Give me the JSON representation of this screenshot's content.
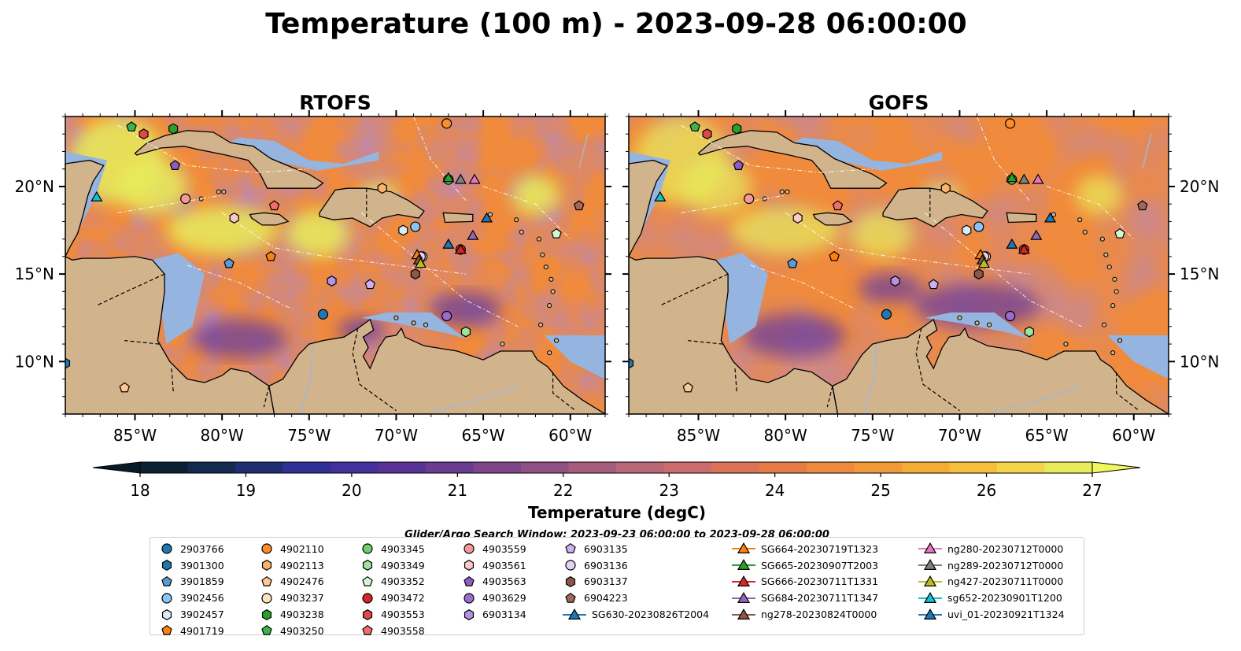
{
  "title": "Temperature (100 m) - 2023-09-28 06:00:00",
  "panels": [
    {
      "title": "RTOFS"
    },
    {
      "title": "GOFS"
    }
  ],
  "axes": {
    "lon_ticks": [
      "85°W",
      "80°W",
      "75°W",
      "70°W",
      "65°W",
      "60°W"
    ],
    "lon_values": [
      -85,
      -80,
      -75,
      -70,
      -65,
      -60
    ],
    "lat_ticks": [
      "10°N",
      "15°N",
      "20°N"
    ],
    "lat_values": [
      10,
      15,
      20
    ],
    "lon_range": [
      -89,
      -58
    ],
    "lat_range": [
      7,
      24
    ]
  },
  "colorbar": {
    "label": "Temperature (degC)",
    "ticks": [
      "18",
      "19",
      "20",
      "21",
      "22",
      "23",
      "24",
      "25",
      "26",
      "27"
    ],
    "range": [
      18,
      27
    ],
    "extend": "both",
    "colors": [
      "#0d1f33",
      "#132a4e",
      "#1f2d73",
      "#302f93",
      "#44309c",
      "#583297",
      "#6b3b8f",
      "#7e4589",
      "#925183",
      "#a65c7c",
      "#b96677",
      "#cd6c6c",
      "#db7356",
      "#e67b48",
      "#ee8a3d",
      "#f29a38",
      "#f5ac37",
      "#f7be3c",
      "#f3d44a",
      "#e8ec5a"
    ]
  },
  "map_colors": {
    "land": "#d2b48c",
    "shelf": "#95b5e0",
    "cool": "#6a3ea0",
    "warm": "#f08a3c",
    "hot": "#e8ec5a"
  },
  "search_window": "Glider/Argo Search Window: 2023-09-23 06:00:00 to 2023-09-28 06:00:00",
  "legend_columns": [
    [
      {
        "label": "2903766",
        "marker": "circle",
        "color": "#1f77b4"
      },
      {
        "label": "3901300",
        "marker": "hexagon",
        "color": "#1f77b4"
      },
      {
        "label": "3901859",
        "marker": "pentagon",
        "color": "#5b9bd5"
      },
      {
        "label": "3902456",
        "marker": "circle",
        "color": "#89c4f4"
      },
      {
        "label": "3902457",
        "marker": "hexagon",
        "color": "#d6ecfb"
      },
      {
        "label": "4901719",
        "marker": "pentagon",
        "color": "#ff7f0e"
      }
    ],
    [
      {
        "label": "4902110",
        "marker": "circle",
        "color": "#ff8c2b"
      },
      {
        "label": "4902113",
        "marker": "hexagon",
        "color": "#ffb26b"
      },
      {
        "label": "4902476",
        "marker": "pentagon",
        "color": "#ffc891"
      },
      {
        "label": "4903237",
        "marker": "circle",
        "color": "#ffe2c2"
      },
      {
        "label": "4903238",
        "marker": "hexagon",
        "color": "#2ca02c"
      },
      {
        "label": "4903250",
        "marker": "pentagon",
        "color": "#3cb44b"
      }
    ],
    [
      {
        "label": "4903345",
        "marker": "circle",
        "color": "#6fcf6f"
      },
      {
        "label": "4903349",
        "marker": "hexagon",
        "color": "#9de29d"
      },
      {
        "label": "4903352",
        "marker": "pentagon",
        "color": "#d4f7d4"
      },
      {
        "label": "4903472",
        "marker": "circle",
        "color": "#d62728"
      },
      {
        "label": "4903553",
        "marker": "hexagon",
        "color": "#e04848"
      },
      {
        "label": "4903558",
        "marker": "pentagon",
        "color": "#f06e6e"
      }
    ],
    [
      {
        "label": "4903559",
        "marker": "circle",
        "color": "#f59898"
      },
      {
        "label": "4903561",
        "marker": "hexagon",
        "color": "#fcc8c8"
      },
      {
        "label": "4903563",
        "marker": "pentagon",
        "color": "#8e5cc4"
      },
      {
        "label": "4903629",
        "marker": "circle",
        "color": "#9a6ccf"
      },
      {
        "label": "6903134",
        "marker": "hexagon",
        "color": "#b493e0"
      }
    ],
    [
      {
        "label": "6903135",
        "marker": "pentagon",
        "color": "#cbb2ec"
      },
      {
        "label": "6903136",
        "marker": "circle",
        "color": "#e6d4f7"
      },
      {
        "label": "6903137",
        "marker": "hexagon",
        "color": "#8c564b"
      },
      {
        "label": "6904223",
        "marker": "pentagon",
        "color": "#a0685c"
      },
      {
        "label": "SG630-20230826T2004",
        "marker": "triangle-line",
        "color": "#1f77b4"
      }
    ],
    [
      {
        "label": "SG664-20230719T1323",
        "marker": "triangle-line",
        "color": "#ff7f0e"
      },
      {
        "label": "SG665-20230907T2003",
        "marker": "triangle-line",
        "color": "#2ca02c"
      },
      {
        "label": "SG666-20230711T1331",
        "marker": "triangle-line",
        "color": "#d62728"
      },
      {
        "label": "SG684-20230711T1347",
        "marker": "triangle-line",
        "color": "#9467bd"
      },
      {
        "label": "ng278-20230824T0000",
        "marker": "triangle-line",
        "color": "#8c564b"
      }
    ],
    [
      {
        "label": "ng280-20230712T0000",
        "marker": "triangle-line",
        "color": "#e377c2"
      },
      {
        "label": "ng289-20230712T0000",
        "marker": "triangle-line",
        "color": "#7f7f7f"
      },
      {
        "label": "ng427-20230711T0000",
        "marker": "triangle-line",
        "color": "#bcbd22"
      },
      {
        "label": "sg652-20230901T1200",
        "marker": "triangle-line",
        "color": "#17becf"
      },
      {
        "label": "uvi_01-20230921T1324",
        "marker": "triangle-line",
        "color": "#1f77b4"
      }
    ]
  ],
  "chart_data": {
    "type": "heatmap",
    "variable": "Temperature",
    "units": "degC",
    "depth": "100 m",
    "time": "2023-09-28 06:00:00",
    "panels": [
      "RTOFS",
      "GOFS"
    ],
    "xlim": [
      -89,
      -58
    ],
    "ylim": [
      7,
      24
    ],
    "color_range": [
      18,
      27
    ],
    "observations": [
      {
        "id": "2903766",
        "lon": -74.2,
        "lat": 12.7,
        "marker": "circle",
        "color": "#1f77b4"
      },
      {
        "id": "3901300",
        "lon": -89.0,
        "lat": 9.9,
        "marker": "hexagon",
        "color": "#1f77b4"
      },
      {
        "id": "3901859",
        "lon": -79.6,
        "lat": 15.6,
        "marker": "pentagon",
        "color": "#5b9bd5"
      },
      {
        "id": "3902456",
        "lon": -68.9,
        "lat": 17.7,
        "marker": "circle",
        "color": "#89c4f4"
      },
      {
        "id": "3902457",
        "lon": -69.6,
        "lat": 17.5,
        "marker": "hexagon",
        "color": "#d6ecfb"
      },
      {
        "id": "4901719",
        "lon": -77.2,
        "lat": 16.0,
        "marker": "pentagon",
        "color": "#ff7f0e"
      },
      {
        "id": "4902110",
        "lon": -67.1,
        "lat": 23.6,
        "marker": "circle",
        "color": "#ff8c2b"
      },
      {
        "id": "4902113",
        "lon": -70.8,
        "lat": 19.9,
        "marker": "hexagon",
        "color": "#ffb26b"
      },
      {
        "id": "4902476",
        "lon": -85.6,
        "lat": 8.5,
        "marker": "pentagon",
        "color": "#ffc891"
      },
      {
        "id": "4903237",
        "lon": -68.5,
        "lat": 16.0,
        "marker": "circle",
        "color": "#ffe2c2"
      },
      {
        "id": "4903238",
        "lon": -82.8,
        "lat": 23.3,
        "marker": "hexagon",
        "color": "#2ca02c"
      },
      {
        "id": "4903250",
        "lon": -85.2,
        "lat": 23.4,
        "marker": "pentagon",
        "color": "#3cb44b"
      },
      {
        "id": "4903345",
        "lon": -67.0,
        "lat": 20.4,
        "marker": "circle",
        "color": "#6fcf6f"
      },
      {
        "id": "4903349",
        "lon": -66.0,
        "lat": 11.7,
        "marker": "hexagon",
        "color": "#9de29d"
      },
      {
        "id": "4903352",
        "lon": -60.8,
        "lat": 17.3,
        "marker": "pentagon",
        "color": "#d4f7d4"
      },
      {
        "id": "4903472",
        "lon": -66.3,
        "lat": 16.4,
        "marker": "circle",
        "color": "#d62728"
      },
      {
        "id": "4903553",
        "lon": -84.5,
        "lat": 23.0,
        "marker": "hexagon",
        "color": "#e04848"
      },
      {
        "id": "4903558",
        "lon": -77.0,
        "lat": 18.9,
        "marker": "pentagon",
        "color": "#f06e6e"
      },
      {
        "id": "4903559",
        "lon": -82.1,
        "lat": 19.3,
        "marker": "circle",
        "color": "#f59898"
      },
      {
        "id": "4903561",
        "lon": -79.3,
        "lat": 18.2,
        "marker": "hexagon",
        "color": "#fcc8c8"
      },
      {
        "id": "4903563",
        "lon": -82.7,
        "lat": 21.2,
        "marker": "pentagon",
        "color": "#8e5cc4"
      },
      {
        "id": "4903629",
        "lon": -67.1,
        "lat": 12.6,
        "marker": "circle",
        "color": "#9a6ccf"
      },
      {
        "id": "6903134",
        "lon": -73.7,
        "lat": 14.6,
        "marker": "hexagon",
        "color": "#b493e0"
      },
      {
        "id": "6903135",
        "lon": -71.5,
        "lat": 14.4,
        "marker": "pentagon",
        "color": "#cbb2ec"
      },
      {
        "id": "6903136",
        "lon": -68.6,
        "lat": 16.0,
        "marker": "circle",
        "color": "#e6d4f7"
      },
      {
        "id": "6903137",
        "lon": -68.9,
        "lat": 15.0,
        "marker": "hexagon",
        "color": "#8c564b"
      },
      {
        "id": "6904223",
        "lon": -59.5,
        "lat": 18.9,
        "marker": "pentagon",
        "color": "#a0685c"
      },
      {
        "id": "SG630-20230826T2004",
        "lon": -67.0,
        "lat": 16.7,
        "marker": "triangle",
        "color": "#1f77b4"
      },
      {
        "id": "SG664-20230719T1323",
        "lon": -68.8,
        "lat": 16.1,
        "marker": "triangle",
        "color": "#ff7f0e"
      },
      {
        "id": "SG665-20230907T2003",
        "lon": -67.0,
        "lat": 20.5,
        "marker": "triangle",
        "color": "#2ca02c"
      },
      {
        "id": "SG666-20230711T1331",
        "lon": -66.3,
        "lat": 16.4,
        "marker": "triangle",
        "color": "#d62728"
      },
      {
        "id": "SG684-20230711T1347",
        "lon": -65.6,
        "lat": 17.2,
        "marker": "triangle",
        "color": "#9467bd"
      },
      {
        "id": "ng278-20230824T0000",
        "lon": -68.7,
        "lat": 15.8,
        "marker": "triangle",
        "color": "#8c564b"
      },
      {
        "id": "ng280-20230712T0000",
        "lon": -65.5,
        "lat": 20.4,
        "marker": "triangle",
        "color": "#e377c2"
      },
      {
        "id": "ng289-20230712T0000",
        "lon": -66.3,
        "lat": 20.4,
        "marker": "triangle",
        "color": "#7f7f7f"
      },
      {
        "id": "ng427-20230711T0000",
        "lon": -68.6,
        "lat": 15.6,
        "marker": "triangle",
        "color": "#bcbd22"
      },
      {
        "id": "sg652-20230901T1200",
        "lon": -87.2,
        "lat": 19.4,
        "marker": "triangle",
        "color": "#17becf"
      },
      {
        "id": "uvi_01-20230921T1324",
        "lon": -64.8,
        "lat": 18.2,
        "marker": "triangle",
        "color": "#1f77b4"
      }
    ]
  }
}
